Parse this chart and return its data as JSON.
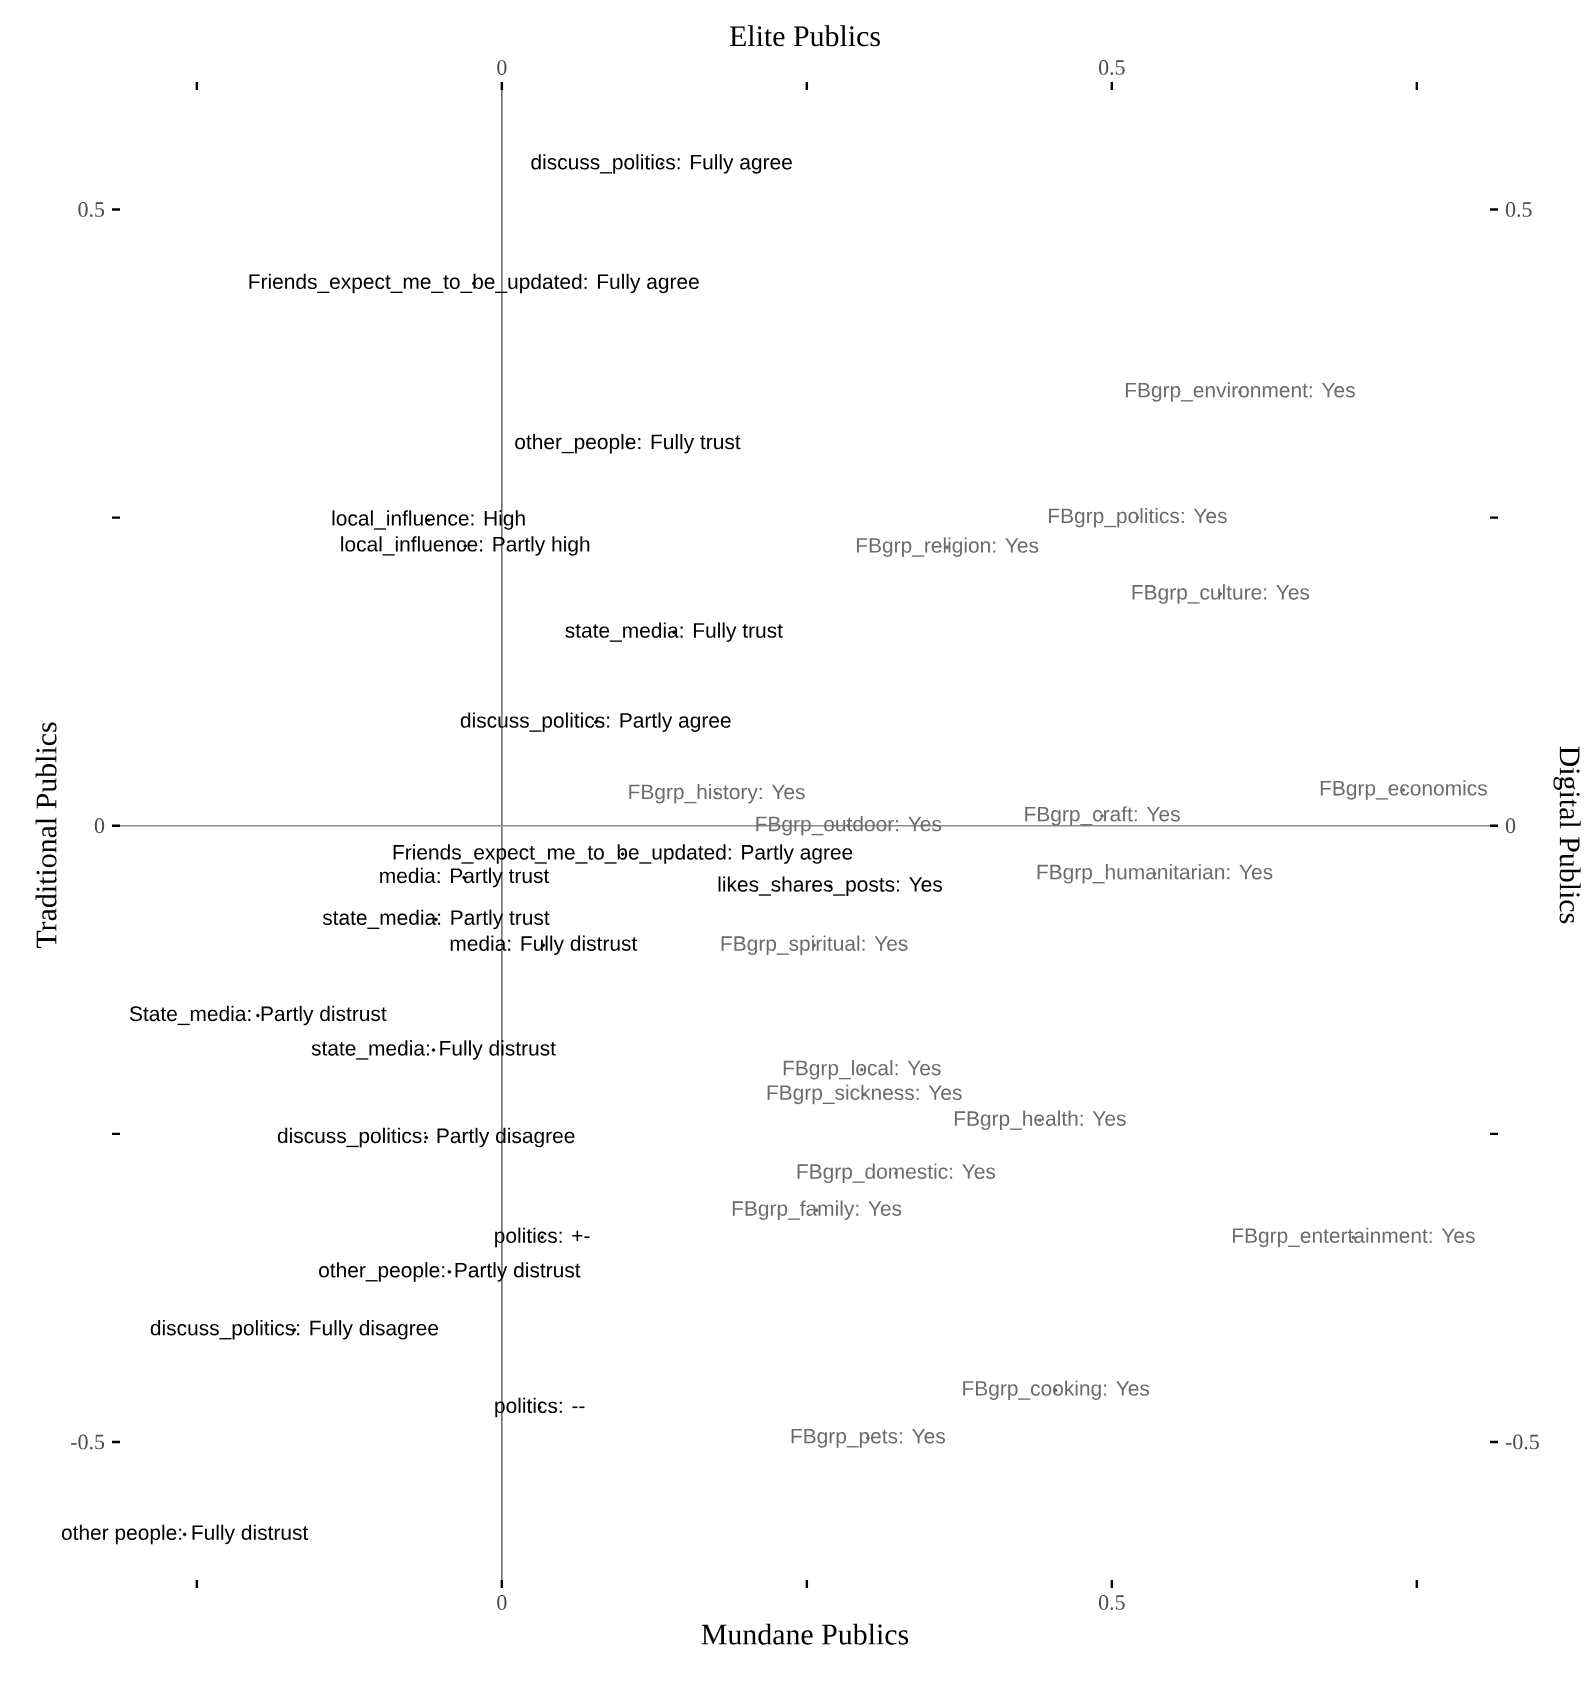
{
  "chart_data": {
    "type": "scatter",
    "xlabel": "Mundane Publics",
    "x2label": "Elite Publics",
    "ylabel": "Traditional Publics",
    "y2label": "Digital Publics",
    "xlim": [
      -0.313,
      0.81
    ],
    "x2lim": [
      -0.313,
      0.81
    ],
    "ylim": [
      -0.612,
      0.597
    ],
    "y2lim": [
      -0.612,
      0.597
    ],
    "xticks": [
      {
        "value": -0.25,
        "label": null
      },
      0,
      {
        "value": 0.25,
        "label": null
      },
      0.5,
      {
        "value": 0.75,
        "label": null
      }
    ],
    "x2ticks": [
      {
        "value": -0.25,
        "label": null
      },
      0,
      {
        "value": 0.25,
        "label": null
      },
      0.5,
      {
        "value": 0.75,
        "label": null
      }
    ],
    "yticks": [
      -0.5,
      {
        "value": -0.25,
        "label": null
      },
      0,
      {
        "value": 0.25,
        "label": null
      },
      0.5
    ],
    "y2ticks": [
      -0.5,
      {
        "value": -0.25,
        "label": null
      },
      0,
      {
        "value": 0.25,
        "label": null
      },
      0.5
    ],
    "ref_lines": [
      {
        "axis": "x",
        "value": 0,
        "color": "#6e6e6e"
      },
      {
        "axis": "y",
        "value": 0,
        "color": "#8c8c8c"
      }
    ],
    "series": [
      {
        "color": "#000000",
        "x": [
          0.131,
          -0.023,
          0.103,
          -0.06,
          -0.03,
          0.141,
          0.077,
          0.099,
          -0.031,
          0.269,
          -0.054,
          0.034,
          -0.2,
          -0.056,
          -0.062,
          0.033,
          -0.043,
          -0.17,
          0.031,
          -0.26
        ],
        "values": [
          0.537,
          0.44,
          0.31,
          0.248,
          0.227,
          0.157,
          0.084,
          -0.023,
          -0.042,
          -0.049,
          -0.076,
          -0.097,
          -0.154,
          -0.182,
          -0.253,
          -0.334,
          -0.362,
          -0.409,
          -0.472,
          -0.575
        ],
        "value_labels": [
          "discuss_politics: Fully agree",
          "Friends_expect_me_to_be_updated: Fully agree",
          "other_people: Fully trust",
          "local_influence: High",
          "local_influence: Partly high",
          "state_media: Fully trust",
          "discuss_politics: Partly agree",
          "Friends_expect_me_to_be_updated: Partly agree",
          "media: Partly trust",
          "likes_shares_posts: Yes",
          "state_media: Partly trust",
          "media: Fully distrust",
          "State_media: Partly distrust",
          "state_media: Fully distrust",
          "discuss_politics: Partly disagree",
          "politics: +-",
          "other_people: Partly distrust",
          "discuss_politics: Fully disagree",
          "politics: --",
          "other people: Fully distrust"
        ]
      },
      {
        "color": "#6b6b6b",
        "x": [
          0.605,
          0.521,
          0.365,
          0.589,
          0.176,
          0.739,
          0.284,
          0.492,
          0.535,
          0.256,
          0.295,
          0.297,
          0.441,
          0.323,
          0.258,
          0.698,
          0.454,
          0.3
        ],
        "values": [
          0.352,
          0.25,
          0.226,
          0.188,
          0.026,
          0.029,
          0.0,
          0.008,
          -0.039,
          -0.097,
          -0.198,
          -0.218,
          -0.239,
          -0.282,
          -0.312,
          -0.334,
          -0.458,
          -0.497
        ],
        "value_labels": [
          "FBgrp_environment: Yes",
          "FBgrp_politics: Yes",
          "FBgrp_religion: Yes",
          "FBgrp_culture: Yes",
          "FBgrp_history: Yes",
          "FBgrp_economics",
          "FBgrp_outdoor: Yes",
          "FBgrp_craft: Yes",
          "FBgrp_humanitarian: Yes",
          "FBgrp_spiritual: Yes",
          "FBgrp_local: Yes",
          "FBgrp_sickness: Yes",
          "FBgrp_health: Yes",
          "FBgrp_domestic: Yes",
          "FBgrp_family: Yes",
          "FBgrp_entertainment: Yes",
          "FBgrp_cooking: Yes",
          "FBgrp_pets: Yes"
        ]
      }
    ]
  }
}
